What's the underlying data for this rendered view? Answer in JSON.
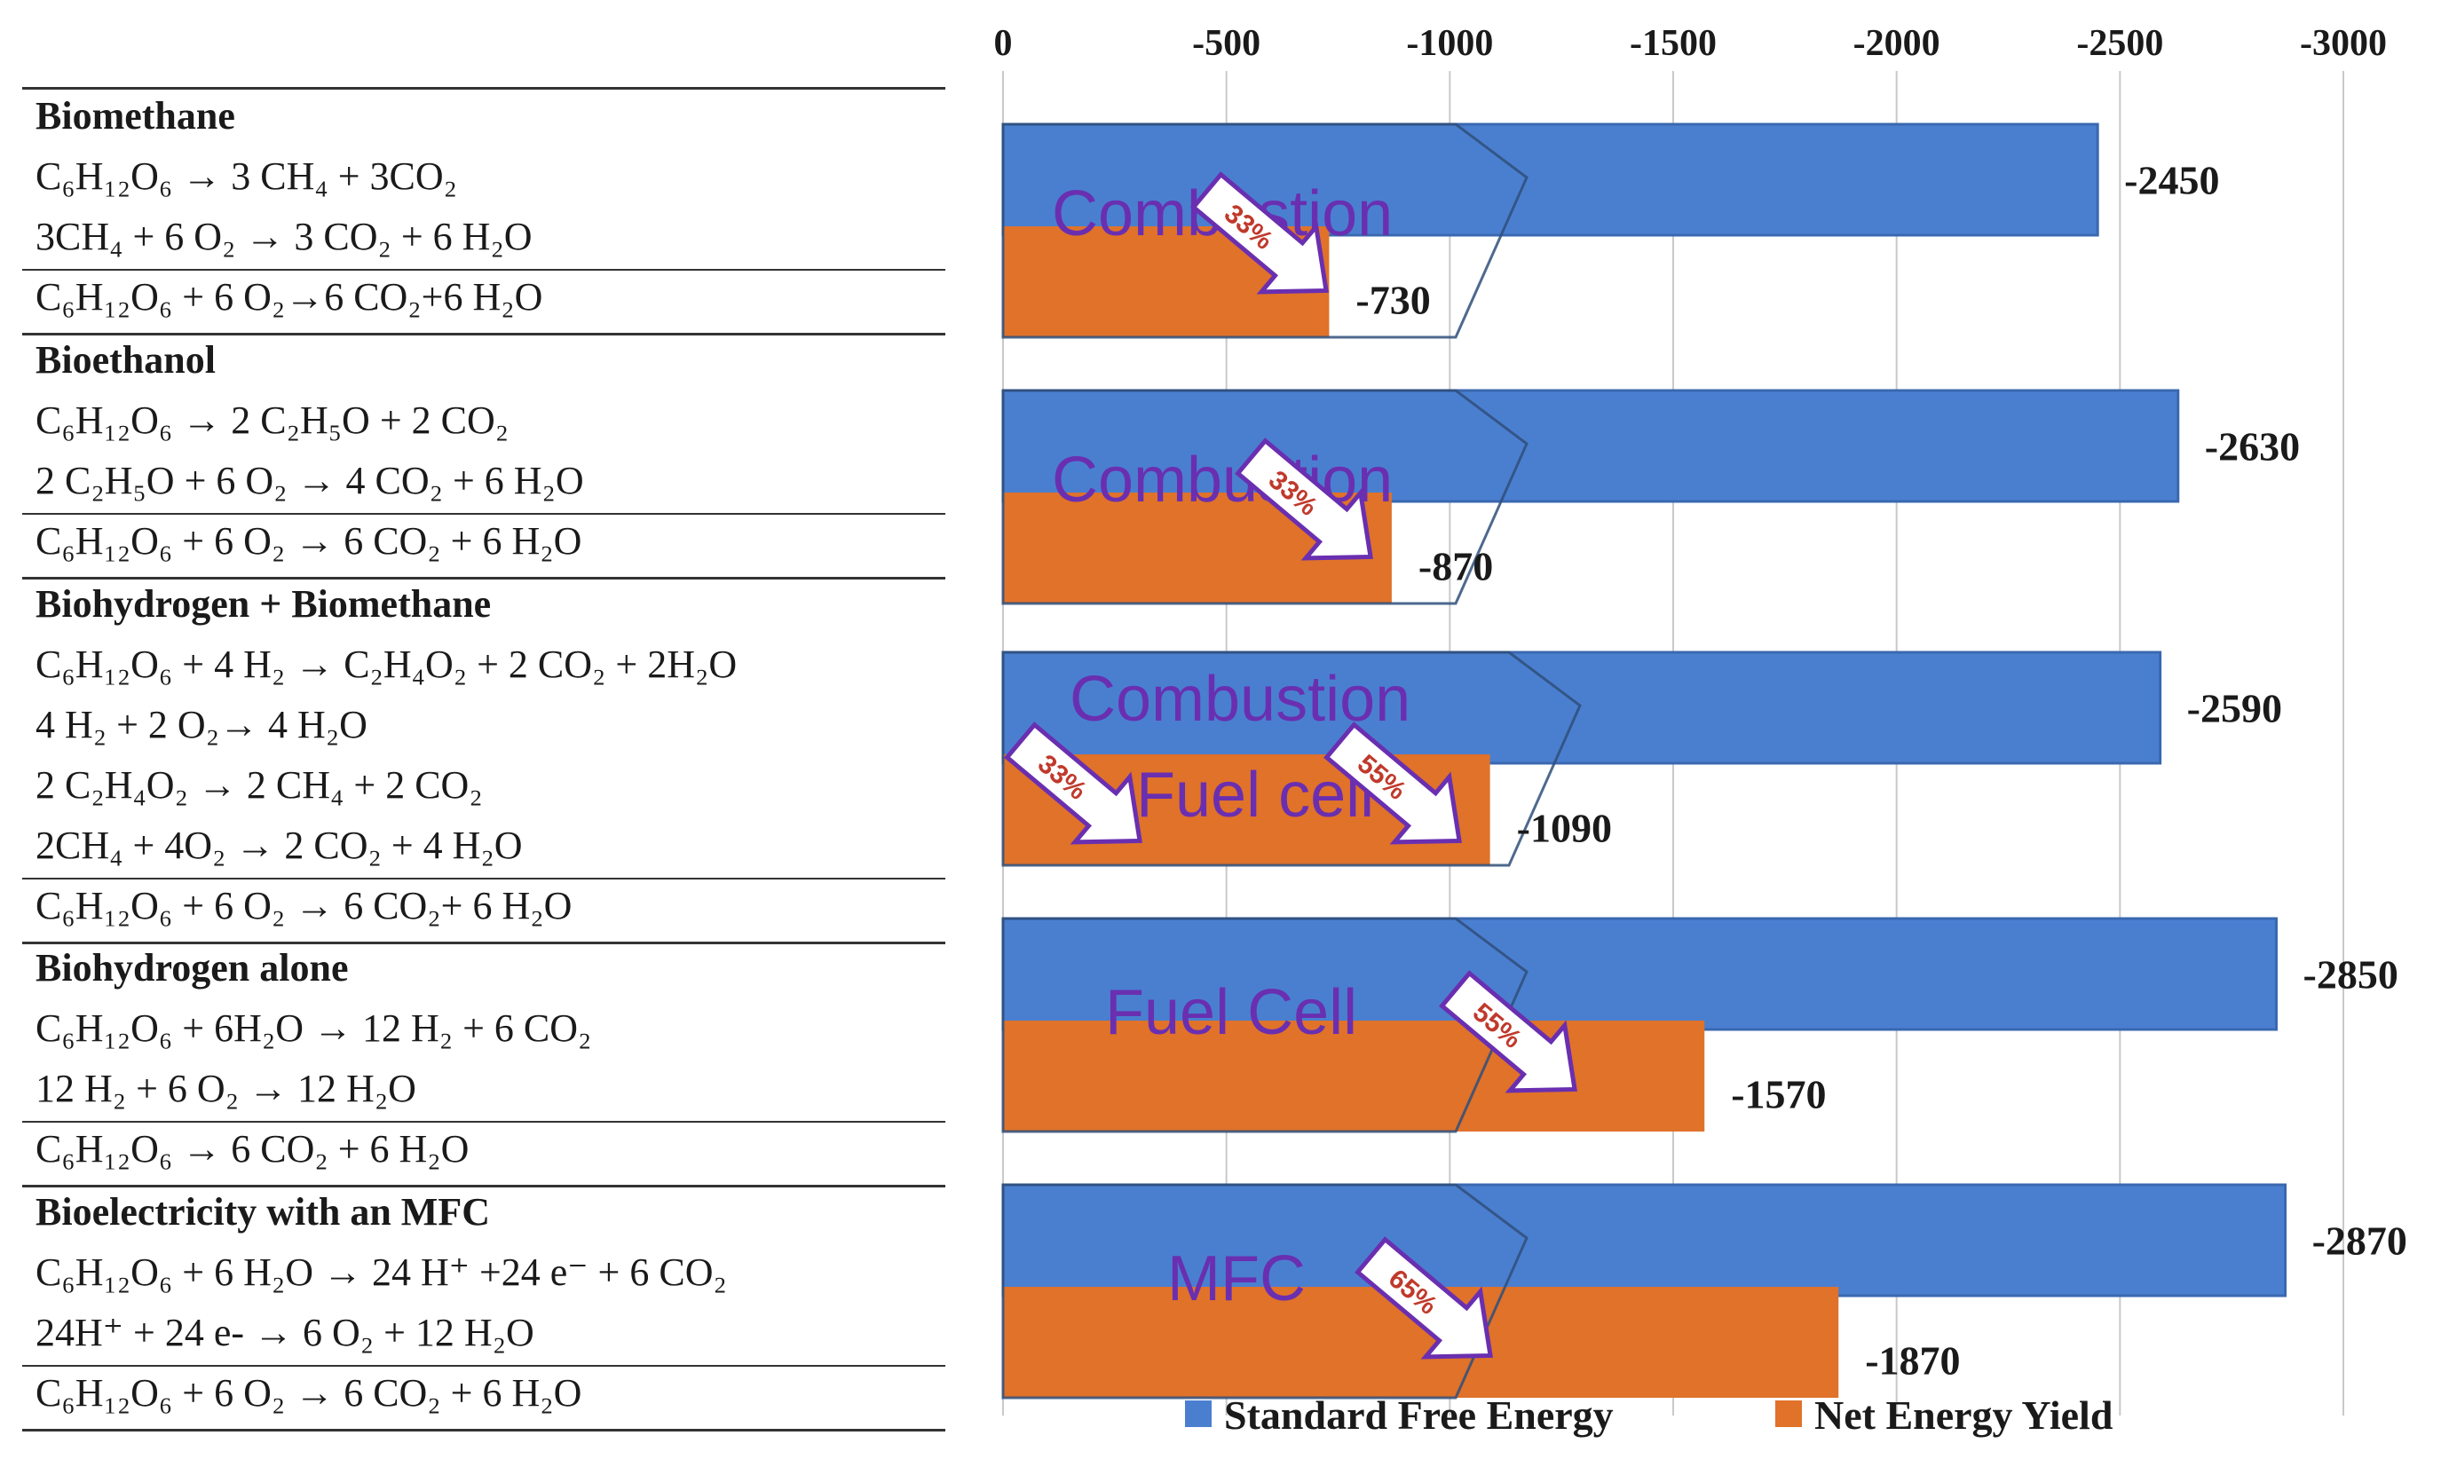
{
  "sections": [
    {
      "title": "Biomethane",
      "equations": [
        "C₆H₁₂O₆ → 3 CH₄ + 3CO₂",
        "3CH₄ + 6 O₂ → 3 CO₂ + 6 H₂O"
      ],
      "net": "C₆H₁₂O₆ + 6 O₂→6 CO₂+6 H₂O"
    },
    {
      "title": "Bioethanol",
      "equations": [
        "C₆H₁₂O₆ → 2 C₂H₅O + 2 CO₂",
        "2 C₂H₅O + 6 O₂ → 4 CO₂ + 6 H₂O"
      ],
      "net": "C₆H₁₂O₆ + 6 O₂ → 6 CO₂ + 6 H₂O"
    },
    {
      "title": "Biohydrogen + Biomethane",
      "equations": [
        "C₆H₁₂O₆ + 4 H₂ → C₂H₄O₂ + 2 CO₂ + 2H₂O",
        "4 H₂ + 2 O₂→ 4 H₂O",
        "2 C₂H₄O₂ → 2 CH₄ + 2 CO₂",
        "2CH₄ + 4O₂ → 2 CO₂ + 4 H₂O"
      ],
      "net": "C₆H₁₂O₆ + 6 O₂  → 6 CO₂+ 6 H₂O"
    },
    {
      "title": "Biohydrogen alone",
      "equations": [
        "C₆H₁₂O₆ + 6H₂O  → 12 H₂ + 6 CO₂",
        "12 H₂ + 6 O₂ → 12 H₂O"
      ],
      "net": "C₆H₁₂O₆ → 6 CO₂ + 6 H₂O"
    },
    {
      "title": "Bioelectricity with an MFC",
      "equations": [
        "C₆H₁₂O₆ + 6 H₂O → 24 H⁺ +24 e⁻ + 6 CO₂",
        "24H⁺ + 24 e- → 6 O₂ + 12 H₂O"
      ],
      "net": "C₆H₁₂O₆ + 6 O₂ → 6 CO₂ + 6 H₂O"
    }
  ],
  "chart_data": {
    "type": "bar",
    "orientation": "horizontal",
    "x_axis_position": "top",
    "grid": true,
    "xlim": [
      0,
      -3000
    ],
    "xticks": [
      "0",
      "-500",
      "-1000",
      "-1500",
      "-2000",
      "-2500",
      "-3000"
    ],
    "categories": [
      "Biomethane",
      "Bioethanol",
      "Biohydrogen + Biomethane",
      "Biohydrogen alone",
      "Bioelectricity with an MFC"
    ],
    "series": [
      {
        "name": "Standard Free Energy",
        "color": "#4a7fd0",
        "values": [
          -2450,
          -2630,
          -2590,
          -2850,
          -2870
        ],
        "labels": [
          "-2450",
          "-2630",
          "-2590",
          "-2850",
          "-2870"
        ]
      },
      {
        "name": "Net Energy Yield",
        "color": "#e0722a",
        "values": [
          -730,
          -870,
          -1090,
          -1570,
          -1870
        ],
        "labels": [
          "-730",
          "-870",
          "-1090",
          "-1570",
          "-1870"
        ]
      }
    ],
    "annotations": [
      {
        "category": "Biomethane",
        "label": "Combustion",
        "efficiency": "33%"
      },
      {
        "category": "Bioethanol",
        "label": "Combustion",
        "efficiency": "33%"
      },
      {
        "category": "Biohydrogen + Biomethane",
        "label": "Combustion",
        "efficiency": "33%"
      },
      {
        "category": "Biohydrogen + Biomethane",
        "label": "Fuel cell",
        "efficiency": "55%"
      },
      {
        "category": "Biohydrogen alone",
        "label": "Fuel Cell",
        "efficiency": "55%"
      },
      {
        "category": "Bioelectricity with an MFC",
        "label": "MFC",
        "efficiency": "65%"
      }
    ],
    "legend_position": "bottom"
  }
}
